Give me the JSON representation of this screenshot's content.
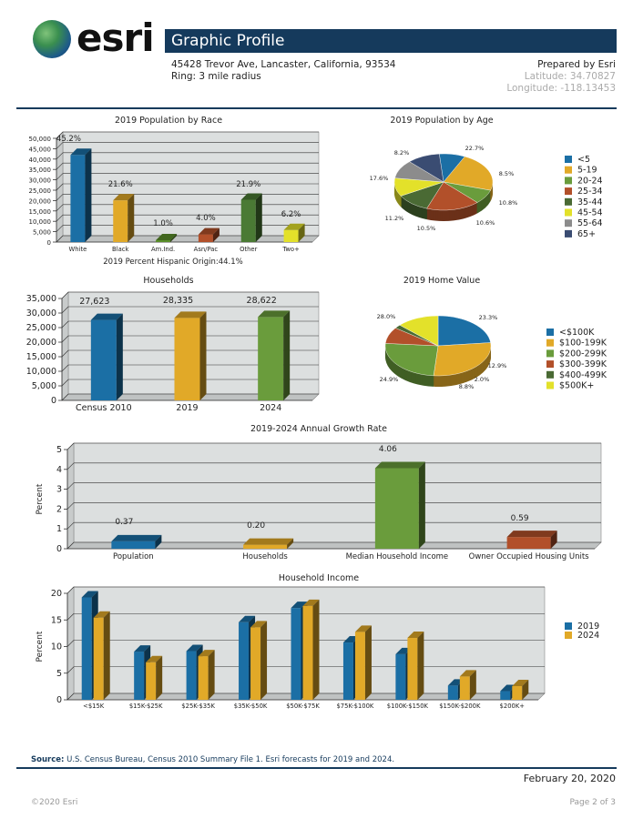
{
  "header": {
    "logo_text": "esri",
    "title": "Graphic Profile",
    "address": "45428 Trevor Ave, Lancaster, California, 93534",
    "ring": "Ring: 3 mile radius",
    "prepared_by": "Prepared by Esri",
    "latitude": "Latitude: 34.70827",
    "longitude": "Longitude: -118.13453"
  },
  "footer": {
    "source_label": "Source:",
    "source_text": "U.S. Census Bureau, Census 2010 Summary File 1. Esri forecasts for 2019 and 2024.",
    "date": "February 20, 2020",
    "copyright": "©2020 Esri",
    "page": "Page 2 of 3"
  },
  "colors": {
    "brand": "#153a5c",
    "blue": "#1b6fa5",
    "gold": "#e1a928",
    "green": "#6a9c3c",
    "rust": "#b2502a",
    "darkgreen": "#4a6a34",
    "yellow": "#e3e12a",
    "gray": "#8c8c8c",
    "navy": "#3a4c72"
  },
  "chart_data": [
    {
      "id": "race",
      "type": "bar",
      "title": "2019 Population by Race",
      "categories": [
        "White",
        "Black",
        "Am.Ind.",
        "Asn/Pac",
        "Other",
        "Two+"
      ],
      "values": [
        42000,
        20100,
        900,
        3700,
        20400,
        5800
      ],
      "data_labels": [
        "45.2%",
        "21.6%",
        "1.0%",
        "4.0%",
        "21.9%",
        "6.2%"
      ],
      "y_ticks": [
        "0",
        "5,000",
        "10,000",
        "15,000",
        "20,000",
        "25,000",
        "30,000",
        "35,000",
        "40,000",
        "45,000",
        "50,000"
      ],
      "ylim": [
        0,
        50000
      ],
      "colors": [
        "#1b6fa5",
        "#e1a928",
        "#5a8f2a",
        "#b2502a",
        "#4a7a34",
        "#e3e12a"
      ],
      "note": "2019 Percent Hispanic Origin:44.1%"
    },
    {
      "id": "age",
      "type": "pie",
      "title": "2019 Population by Age",
      "labels": [
        "<5",
        "5-19",
        "20-24",
        "25-34",
        "35-44",
        "45-54",
        "55-64",
        "65+"
      ],
      "values": [
        8.5,
        22.7,
        8.2,
        17.6,
        11.2,
        10.5,
        10.6,
        10.8
      ],
      "data_labels": [
        "8.5%",
        "22.7%",
        "8.2%",
        "17.6%",
        "11.2%",
        "10.5%",
        "10.6%",
        "10.8%"
      ],
      "colors": [
        "#1b6fa5",
        "#e1a928",
        "#6a9c3c",
        "#b2502a",
        "#4a6a34",
        "#e3e12a",
        "#8c8c8c",
        "#3a4c72"
      ]
    },
    {
      "id": "households",
      "type": "bar",
      "title": "Households",
      "categories": [
        "Census 2010",
        "2019",
        "2024"
      ],
      "values": [
        27623,
        28335,
        28622
      ],
      "data_labels": [
        "27,623",
        "28,335",
        "28,622"
      ],
      "y_ticks": [
        "0",
        "5,000",
        "10,000",
        "15,000",
        "20,000",
        "25,000",
        "30,000",
        "35,000"
      ],
      "ylim": [
        0,
        35000
      ],
      "colors": [
        "#1b6fa5",
        "#e1a928",
        "#6a9c3c"
      ]
    },
    {
      "id": "homevalue",
      "type": "pie",
      "title": "2019 Home Value",
      "labels": [
        "<$100K",
        "$100-199K",
        "$200-299K",
        "$300-399K",
        "$400-499K",
        "$500K+"
      ],
      "values": [
        23.3,
        28.0,
        24.9,
        8.8,
        2.0,
        12.9
      ],
      "data_labels": [
        "23.3%",
        "28.0%",
        "24.9%",
        "8.8%",
        "2.0%",
        "12.9%"
      ],
      "colors": [
        "#1b6fa5",
        "#e1a928",
        "#6a9c3c",
        "#b2502a",
        "#4a6a34",
        "#e3e12a"
      ]
    },
    {
      "id": "growth",
      "type": "bar",
      "title": "2019-2024 Annual Growth Rate",
      "categories": [
        "Population",
        "Households",
        "Median Household Income",
        "Owner Occupied Housing Units"
      ],
      "values": [
        0.37,
        0.2,
        4.06,
        0.59
      ],
      "data_labels": [
        "0.37",
        "0.20",
        "4.06",
        "0.59"
      ],
      "y_ticks": [
        "0",
        "1",
        "2",
        "3",
        "4",
        "5"
      ],
      "ylim": [
        0,
        5
      ],
      "ylabel": "Percent",
      "colors": [
        "#1b6fa5",
        "#e1a928",
        "#6a9c3c",
        "#b2502a"
      ]
    },
    {
      "id": "income",
      "type": "bar",
      "title": "Household Income",
      "categories": [
        "<$15K",
        "$15K-$25K",
        "$25K-$35K",
        "$35K-$50K",
        "$50K-$75K",
        "$75K-$100K",
        "$100K-$150K",
        "$150K-$200K",
        "$200K+"
      ],
      "series": [
        {
          "name": "2019",
          "values": [
            20.2,
            9.5,
            9.6,
            15.3,
            18.1,
            11.3,
            9.0,
            2.8,
            1.7
          ]
        },
        {
          "name": "2024",
          "values": [
            16.2,
            7.4,
            8.6,
            14.3,
            18.5,
            13.4,
            12.2,
            4.6,
            2.7
          ]
        }
      ],
      "y_ticks": [
        "0",
        "5",
        "10",
        "15",
        "20"
      ],
      "ylim": [
        0,
        21
      ],
      "ylabel": "Percent",
      "colors": [
        "#1b6fa5",
        "#e1a928"
      ]
    }
  ]
}
